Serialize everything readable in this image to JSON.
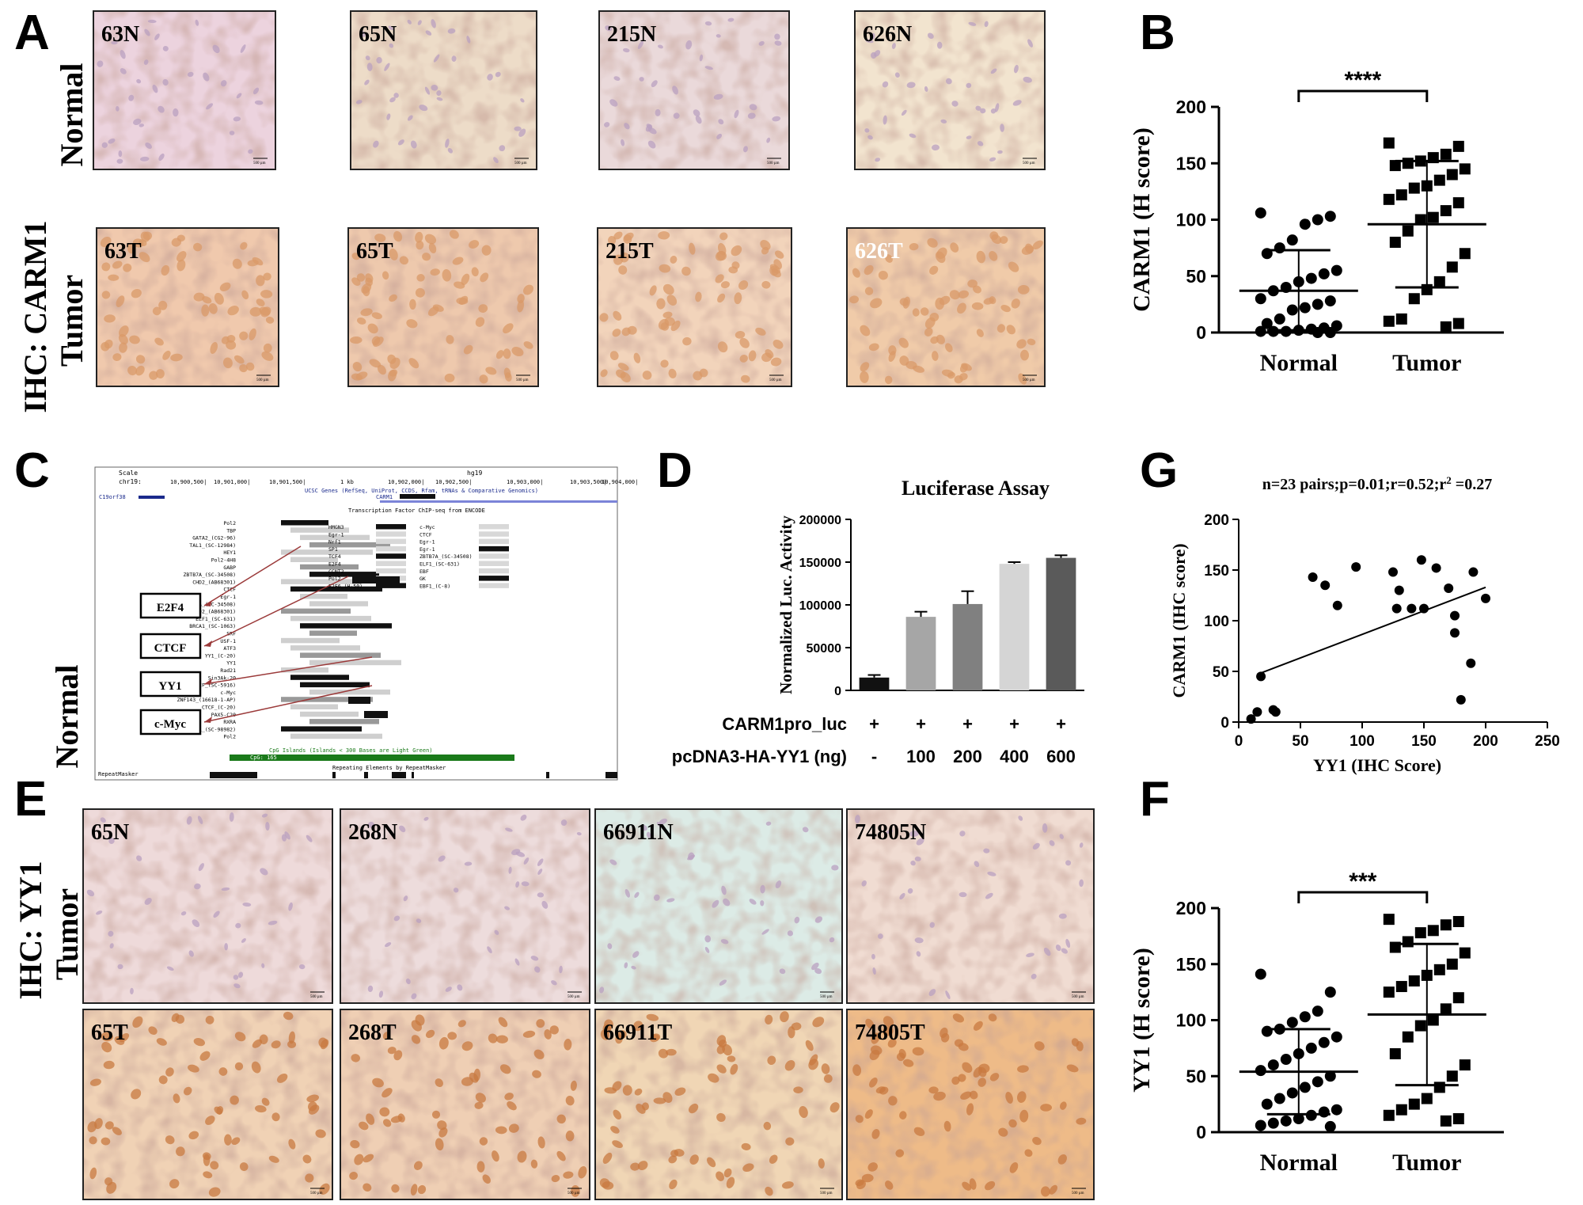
{
  "panel_letters": [
    "A",
    "B",
    "C",
    "D",
    "E",
    "F",
    "G"
  ],
  "panelA": {
    "row_side": "IHC: CARM1",
    "row_labels": [
      "Normal",
      "Tumor"
    ],
    "tiles": [
      {
        "label": "63N",
        "tone": "#ecd3de"
      },
      {
        "label": "65N",
        "tone": "#eddcc8"
      },
      {
        "label": "215N",
        "tone": "#ead9da"
      },
      {
        "label": "626N",
        "tone": "#f2e4cf"
      },
      {
        "label": "63T",
        "tone": "#f0c9ad"
      },
      {
        "label": "65T",
        "tone": "#eec9ad"
      },
      {
        "label": "215T",
        "tone": "#f2d4bb"
      },
      {
        "label": "626T",
        "tone": "#f0cba9"
      }
    ],
    "scale_text": "500 µm"
  },
  "panelE": {
    "row_side": "IHC: YY1",
    "row_labels": [
      "Normal",
      "Tumor"
    ],
    "tiles": [
      {
        "label": "65N",
        "tone": "#eedada"
      },
      {
        "label": "268N",
        "tone": "#eddcdc"
      },
      {
        "label": "66911N",
        "tone": "#dcebe6"
      },
      {
        "label": "74805N",
        "tone": "#f0dcd2"
      },
      {
        "label": "65T",
        "tone": "#f0d2b5"
      },
      {
        "label": "268T",
        "tone": "#efcfb4"
      },
      {
        "label": "66911T",
        "tone": "#f0d6b5"
      },
      {
        "label": "74805T",
        "tone": "#eebb88"
      }
    ]
  },
  "panelC": {
    "boxes": [
      "E2F4",
      "CTCF",
      "YY1",
      "c-Myc"
    ],
    "header_left": [
      "Scale",
      "chr19:"
    ],
    "header_ticks": [
      "10,900,500|",
      "10,901,000|",
      "10,901,500|",
      "1 kb",
      "10,902,000|",
      "10,902,500|",
      "10,903,000|",
      "10,903,500|",
      "10,904,000|"
    ],
    "genome": "hg19",
    "track_title": "UCSC Genes (RefSeq, UniProt, CCDS, Rfam, tRNAs & Comparative Genomics)",
    "tfbs_title": "Transcription Factor ChIP-seq from ENCODE",
    "gene_left": "C19orf38",
    "gene_mid": "CARM1",
    "tfs": [
      "Pol2",
      "TBP",
      "GATA2_(CG2-96)",
      "TAL1_(SC-12984)",
      "HEY1",
      "Pol2-4H8",
      "GABP",
      "ZBTB7A_(SC-34508)",
      "CHD2_(AB68301)",
      "CTCF",
      "Egr-1",
      "ZBTB7A_(SC-34508)",
      "CHD2_(AB68301)",
      "ELF1_(SC-631)",
      "BRCA1_(SC-1063)",
      "SRF",
      "USF-1",
      "ATF3",
      "YY1_(C-20)",
      "YY1",
      "Rad21",
      "Sin3Ak-20",
      "CTCF_(SC-5916)",
      "c-Myc",
      "ZNF143_(16618-1-AP)",
      "CTCF_(C-20)",
      "PAX5-C20",
      "RXRA",
      "CTCFL_(SC-98982)",
      "Pol2"
    ],
    "tfs_mid": [
      "HMGN3",
      "Egr-1",
      "Nrf1",
      "SP1",
      "TCF4",
      "E2F4",
      "CCNT2",
      "Pol2",
      "E2F6_(H-50)",
      "c-Myc",
      "CTCF",
      "Egr-1",
      "Egr-1",
      "ZBTB7A_(SC-34508)",
      "ELF1_(SC-631)",
      "EBF",
      "GK",
      "EBF1_(C-8)"
    ],
    "cpg_label": "CpG: 165",
    "cpg_title": "CpG Islands (Islands < 300 Bases are Light Green)",
    "repeat_title": "Repeating Elements by RepeatMasker",
    "repeat_label": "RepeatMasker"
  },
  "chart_data": [
    {
      "panel": "B",
      "type": "scatter",
      "ylabel": "CARM1 (H score)",
      "categories": [
        "Normal",
        "Tumor"
      ],
      "ylim": [
        0,
        200
      ],
      "yticks": [
        0,
        50,
        100,
        150,
        200
      ],
      "significance": "****",
      "series": [
        {
          "name": "Normal",
          "marker": "circle",
          "mean": 37,
          "sd_low": 2,
          "sd_high": 73,
          "values": [
            106,
            103,
            100,
            96,
            82,
            75,
            70,
            55,
            52,
            48,
            45,
            40,
            37,
            30,
            28,
            25,
            22,
            20,
            12,
            8,
            6,
            4,
            3,
            2,
            1,
            1,
            1,
            0,
            0
          ]
        },
        {
          "name": "Tumor",
          "marker": "square",
          "mean": 96,
          "sd_low": 40,
          "sd_high": 152,
          "values": [
            168,
            165,
            158,
            155,
            152,
            150,
            148,
            145,
            140,
            135,
            130,
            128,
            122,
            118,
            115,
            108,
            102,
            100,
            90,
            80,
            70,
            58,
            45,
            38,
            30,
            12,
            10,
            8,
            5
          ]
        }
      ]
    },
    {
      "panel": "D",
      "type": "bar",
      "title": "Luciferase Assay",
      "ylabel": "Normalized Luc. Activity",
      "ylim": [
        0,
        200000
      ],
      "yticks": [
        0,
        50000,
        100000,
        150000,
        200000
      ],
      "row1_label": "CARM1pro_luc",
      "row1_values": [
        "+",
        "+",
        "+",
        "+",
        "+"
      ],
      "row2_label": "pcDNA3-HA-YY1 (ng)",
      "categories": [
        "-",
        "100",
        "200",
        "400",
        "600"
      ],
      "values": [
        15000,
        86000,
        101000,
        148000,
        155000
      ],
      "errors": [
        3000,
        6000,
        15000,
        2000,
        3000
      ],
      "colors": [
        "#111111",
        "#a6a6a6",
        "#808080",
        "#d5d5d5",
        "#5a5a5a"
      ]
    },
    {
      "panel": "G",
      "type": "scatter",
      "title_parts": {
        "text": "n=23 pairs;p=0.01;r=0.52;r",
        "sup": "2",
        "tail": " =0.27"
      },
      "xlabel": "YY1 (IHC Score)",
      "ylabel": "CARM1 (IHC score)",
      "xlim": [
        0,
        250
      ],
      "ylim": [
        0,
        200
      ],
      "xticks": [
        0,
        50,
        100,
        150,
        200,
        250
      ],
      "yticks": [
        0,
        50,
        100,
        150,
        200
      ],
      "x": [
        10,
        15,
        18,
        28,
        30,
        60,
        70,
        80,
        95,
        125,
        128,
        130,
        140,
        148,
        150,
        160,
        170,
        175,
        175,
        180,
        188,
        190,
        200
      ],
      "y": [
        3,
        10,
        45,
        12,
        10,
        143,
        135,
        115,
        153,
        148,
        112,
        130,
        112,
        160,
        112,
        152,
        132,
        105,
        88,
        22,
        58,
        148,
        122
      ],
      "fit": {
        "x": [
          15,
          200
        ],
        "y": [
          47,
          133
        ]
      }
    },
    {
      "panel": "F",
      "type": "scatter",
      "ylabel": "YY1 (H score)",
      "categories": [
        "Normal",
        "Tumor"
      ],
      "ylim": [
        0,
        200
      ],
      "yticks": [
        0,
        50,
        100,
        150,
        200
      ],
      "significance": "***",
      "series": [
        {
          "name": "Normal",
          "marker": "circle",
          "mean": 54,
          "sd_low": 16,
          "sd_high": 92,
          "values": [
            141,
            125,
            108,
            103,
            98,
            92,
            90,
            85,
            80,
            75,
            70,
            65,
            60,
            55,
            50,
            45,
            40,
            35,
            30,
            25,
            20,
            18,
            15,
            12,
            10,
            8,
            6,
            5
          ]
        },
        {
          "name": "Tumor",
          "marker": "square",
          "mean": 105,
          "sd_low": 42,
          "sd_high": 168,
          "values": [
            190,
            188,
            185,
            180,
            178,
            170,
            165,
            160,
            150,
            145,
            140,
            135,
            130,
            125,
            120,
            110,
            100,
            95,
            85,
            70,
            60,
            50,
            40,
            30,
            25,
            20,
            15,
            12,
            10
          ]
        }
      ]
    }
  ]
}
